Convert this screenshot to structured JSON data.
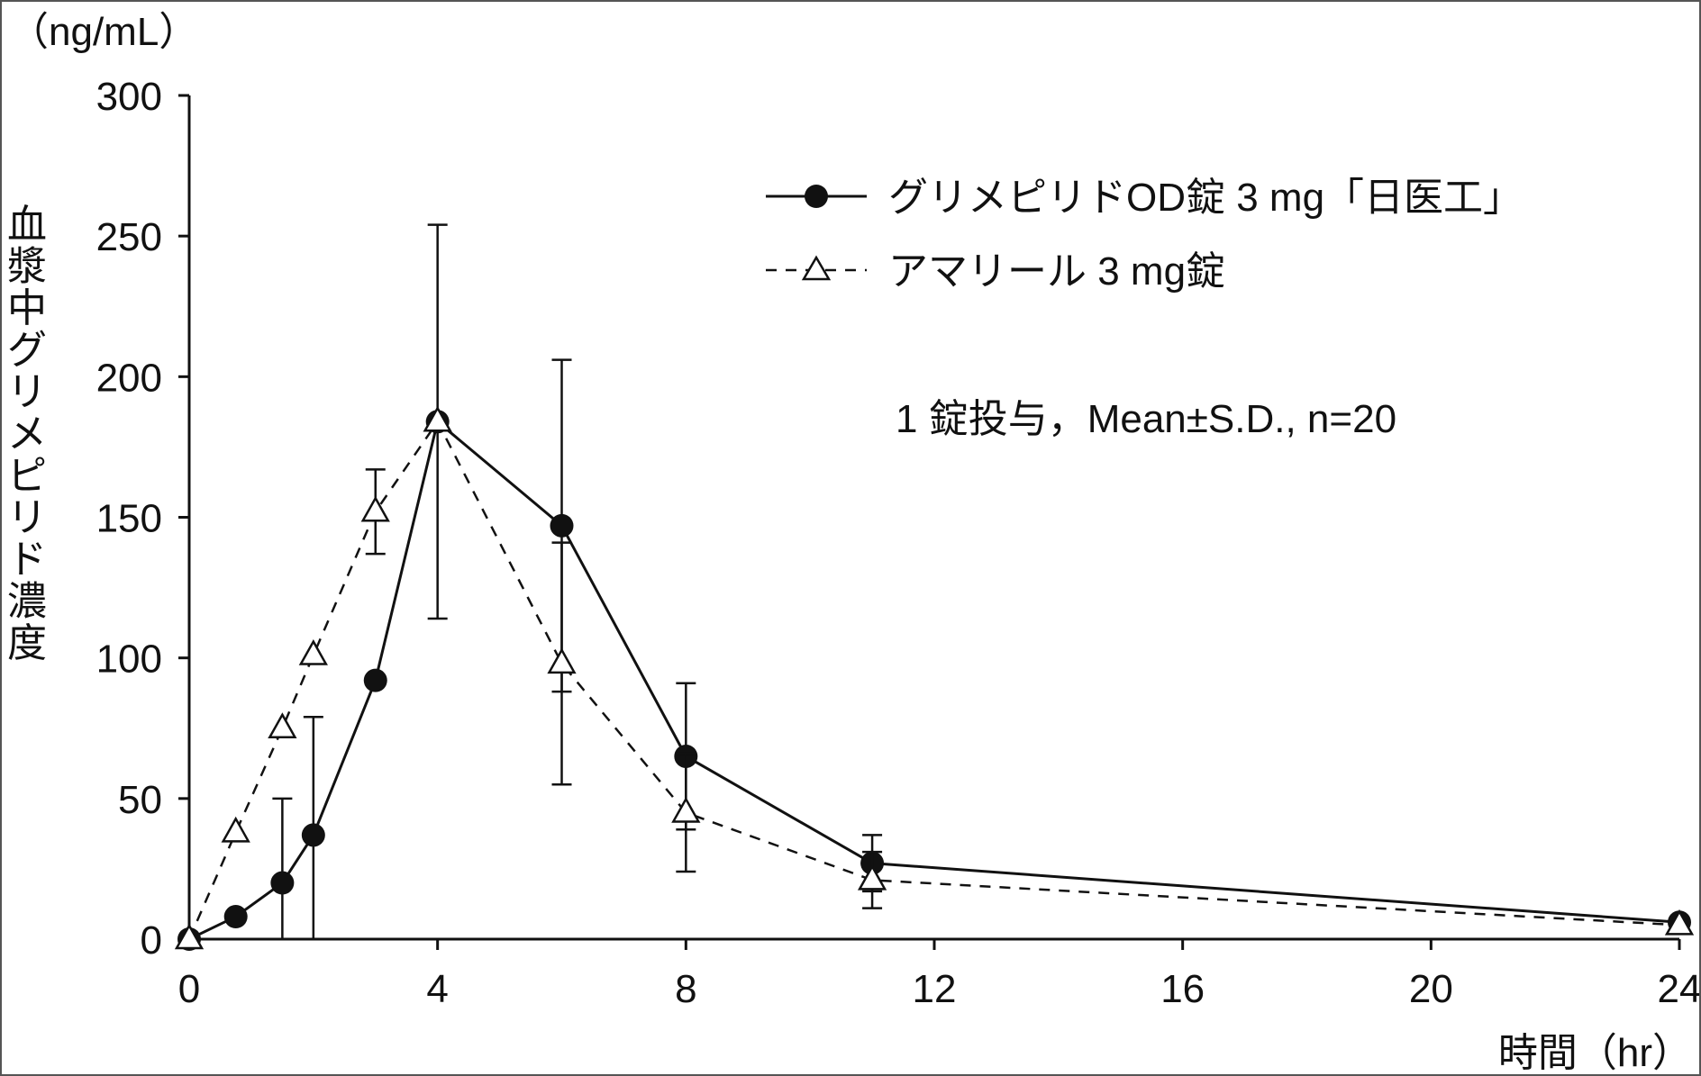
{
  "chart_data": {
    "type": "line",
    "ylabel": "血漿中グリメピリド濃度",
    "yunit": "（ng/mL）",
    "xlabel": "時間（hr）",
    "xlim": [
      0,
      24
    ],
    "ylim": [
      0,
      300
    ],
    "xticks": [
      "0",
      "4",
      "8",
      "12",
      "16",
      "20",
      "24"
    ],
    "yticks": [
      "0",
      "50",
      "100",
      "150",
      "200",
      "250",
      "300"
    ],
    "legend_position": "top-right",
    "note": "1 錠投与，Mean±S.D., n=20",
    "series": [
      {
        "name": "グリメピリドOD錠 3 mg「日医工」",
        "line_style": "solid",
        "marker": "filled-circle",
        "color": "#111111",
        "points": [
          {
            "x": 0,
            "y": 0,
            "sd": 0
          },
          {
            "x": 0.75,
            "y": 8,
            "sd": 0
          },
          {
            "x": 1.5,
            "y": 20,
            "sd": 30
          },
          {
            "x": 2,
            "y": 37,
            "sd": 42
          },
          {
            "x": 3,
            "y": 92,
            "sd": 0
          },
          {
            "x": 4,
            "y": 184,
            "sd": 70
          },
          {
            "x": 6,
            "y": 147,
            "sd": 59
          },
          {
            "x": 8,
            "y": 65,
            "sd": 26
          },
          {
            "x": 11,
            "y": 27,
            "sd": 10
          },
          {
            "x": 24,
            "y": 6,
            "sd": 0
          }
        ]
      },
      {
        "name": "アマリール 3 mg錠",
        "line_style": "dashed",
        "marker": "open-triangle",
        "color": "#111111",
        "points": [
          {
            "x": 0,
            "y": 0,
            "sd": 0
          },
          {
            "x": 0.75,
            "y": 38,
            "sd": 0
          },
          {
            "x": 1.5,
            "y": 75,
            "sd": 0
          },
          {
            "x": 2,
            "y": 101,
            "sd": 0
          },
          {
            "x": 3,
            "y": 152,
            "sd": 15
          },
          {
            "x": 4,
            "y": 184,
            "sd": 0
          },
          {
            "x": 6,
            "y": 98,
            "sd": 43
          },
          {
            "x": 8,
            "y": 45,
            "sd": 21
          },
          {
            "x": 11,
            "y": 21,
            "sd": 10
          },
          {
            "x": 24,
            "y": 5,
            "sd": 0
          }
        ]
      }
    ]
  }
}
